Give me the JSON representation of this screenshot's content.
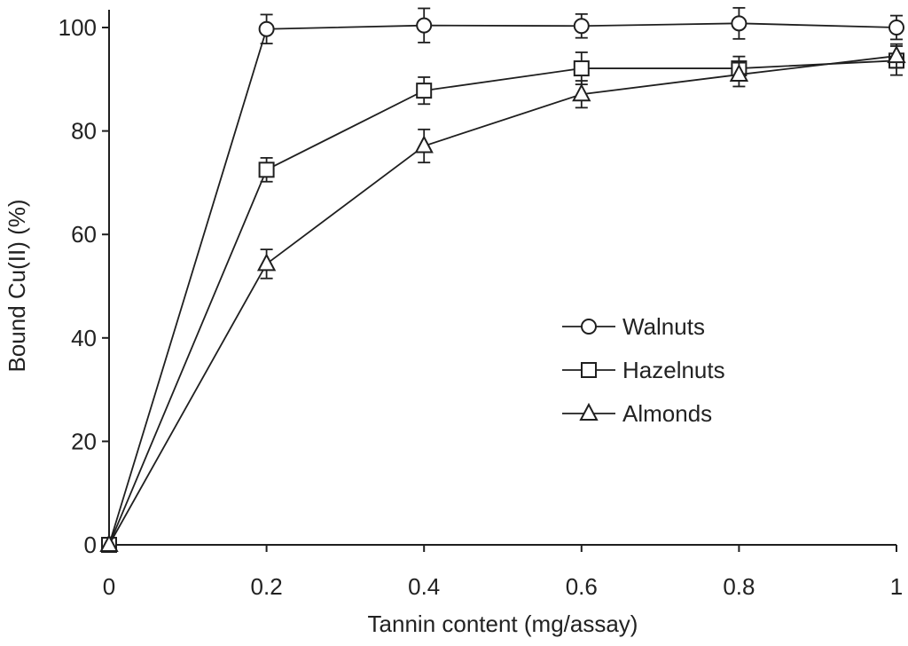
{
  "chart_data": {
    "type": "line",
    "xlabel": "Tannin content (mg/assay)",
    "ylabel": "Bound Cu(II) (%)",
    "xlim": [
      0,
      1
    ],
    "ylim": [
      0,
      100
    ],
    "x_ticks": [
      0,
      0.2,
      0.4,
      0.6,
      0.8,
      1
    ],
    "x_tick_labels": [
      "0",
      "0.2",
      "0.4",
      "0.6",
      "0.8",
      "1"
    ],
    "y_ticks": [
      0,
      20,
      40,
      60,
      80,
      100
    ],
    "y_tick_labels": [
      "0",
      "20",
      "40",
      "60",
      "80",
      "100"
    ],
    "grid": false,
    "legend_position": "center-right",
    "x": [
      0,
      0.2,
      0.4,
      0.6,
      0.8,
      1
    ],
    "series": [
      {
        "name": "Walnuts",
        "marker": "circle",
        "values": [
          0,
          99.7,
          100.4,
          100.3,
          100.8,
          100
        ],
        "errors": [
          0,
          2.8,
          3.3,
          2.3,
          3.0,
          2.3
        ]
      },
      {
        "name": "Hazelnuts",
        "marker": "square",
        "values": [
          0,
          72.5,
          87.8,
          92.1,
          92.1,
          93.6
        ],
        "errors": [
          0,
          2.3,
          2.6,
          3.1,
          2.3,
          2.8
        ]
      },
      {
        "name": "Almonds",
        "marker": "triangle",
        "values": [
          0,
          54.3,
          77.1,
          87.1,
          90.9,
          94.5
        ],
        "errors": [
          0,
          2.8,
          3.2,
          2.6,
          2.3,
          2.3
        ]
      }
    ]
  }
}
